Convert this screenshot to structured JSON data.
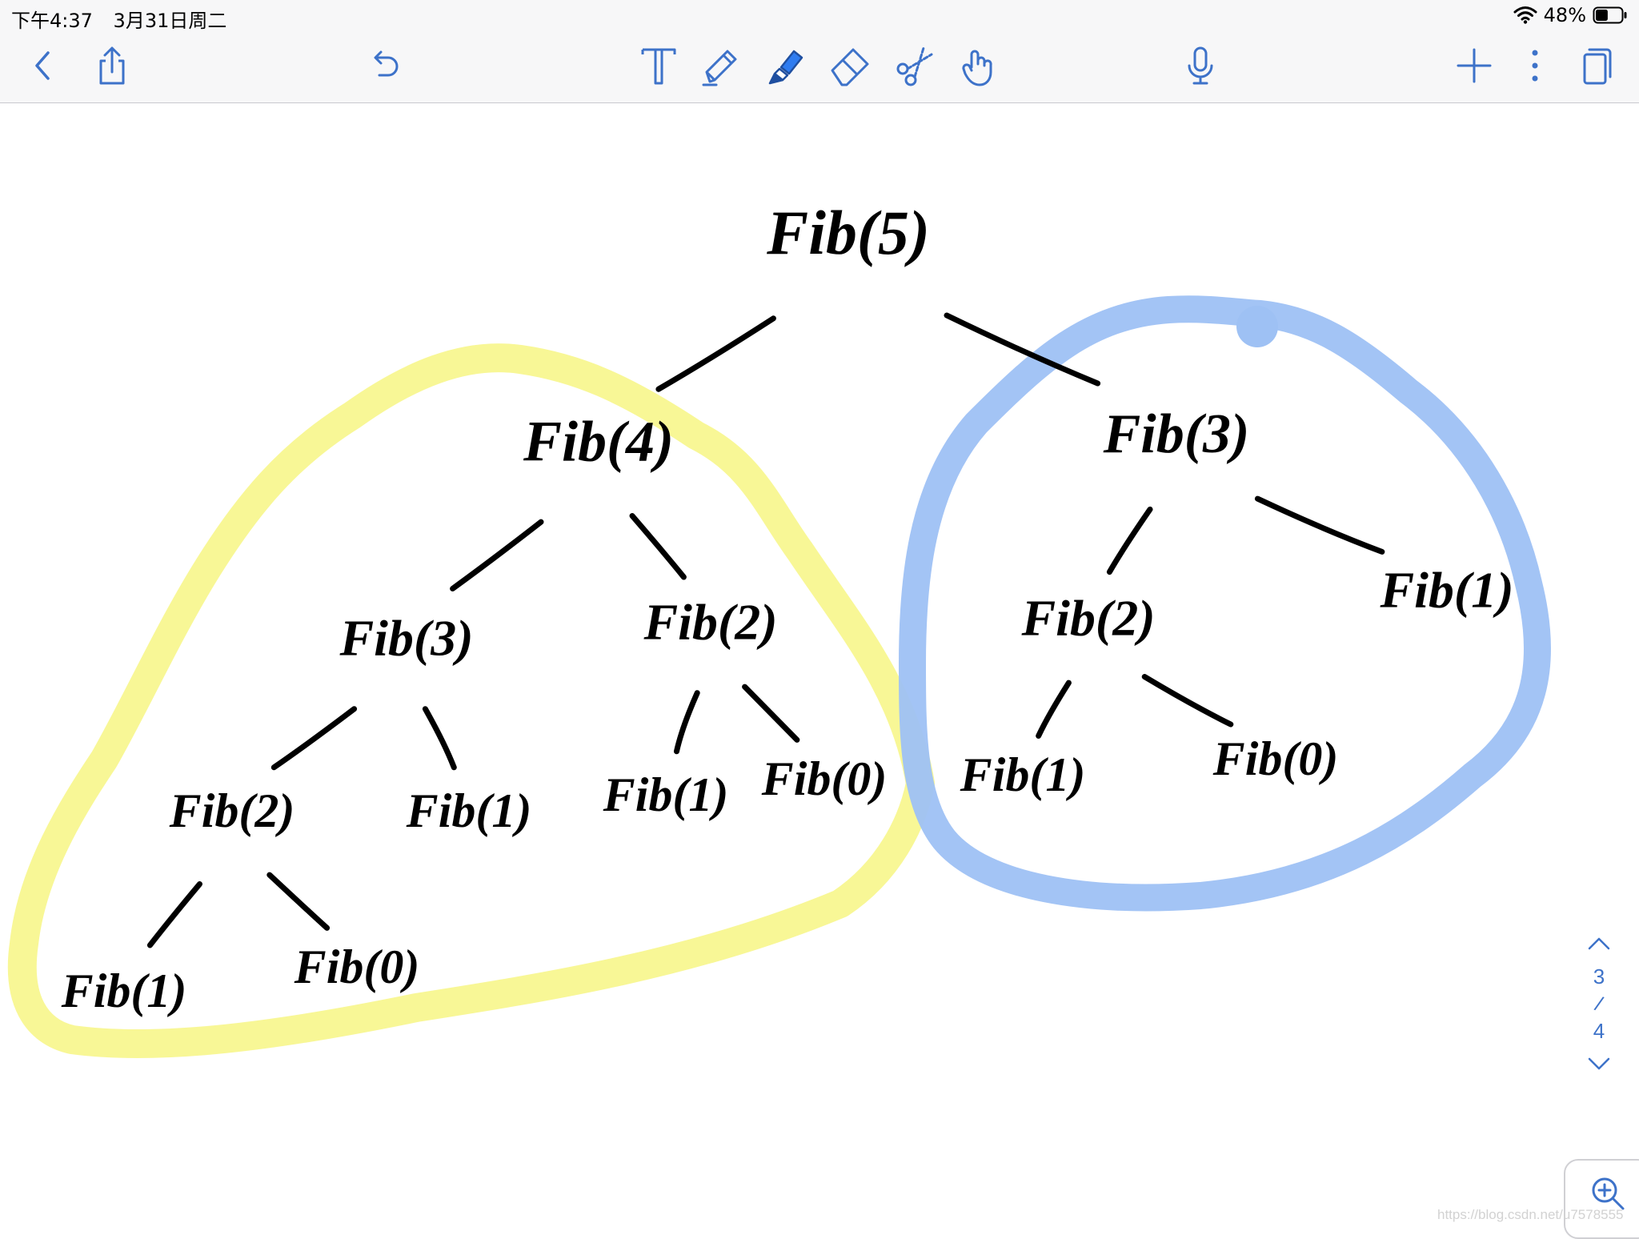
{
  "status_bar": {
    "time": "下午4:37",
    "date": "3月31日周二",
    "battery": "48%",
    "battery_level": 0.48
  },
  "toolbar": {
    "icons": [
      "back-chevron-icon",
      "share-icon",
      "undo-icon",
      "text-tool-icon",
      "pen-tool-icon",
      "highlighter-tool-icon",
      "eraser-tool-icon",
      "scissors-tool-icon",
      "hand-pointer-tool-icon",
      "microphone-icon",
      "plus-icon",
      "more-vertical-icon",
      "pages-icon"
    ],
    "selected_tool": "highlighter",
    "accent_color": "#3d72c9"
  },
  "canvas": {
    "nodes": [
      {
        "id": "n5",
        "label": "Fib(5)"
      },
      {
        "id": "n4",
        "label": "Fib(4)"
      },
      {
        "id": "n3r",
        "label": "Fib(3)"
      },
      {
        "id": "n3l",
        "label": "Fib(3)"
      },
      {
        "id": "n2m",
        "label": "Fib(2)"
      },
      {
        "id": "n2r",
        "label": "Fib(2)"
      },
      {
        "id": "n1r",
        "label": "Fib(1)"
      },
      {
        "id": "n2l",
        "label": "Fib(2)"
      },
      {
        "id": "n1a",
        "label": "Fib(1)"
      },
      {
        "id": "n1b",
        "label": "Fib(1)"
      },
      {
        "id": "n0a",
        "label": "Fib(0)"
      },
      {
        "id": "n1c",
        "label": "Fib(1)"
      },
      {
        "id": "n0b",
        "label": "Fib(0)"
      },
      {
        "id": "n1d",
        "label": "Fib(1)"
      },
      {
        "id": "n0c",
        "label": "Fib(0)"
      }
    ],
    "edges": [
      [
        "n5",
        "n4"
      ],
      [
        "n5",
        "n3r"
      ],
      [
        "n4",
        "n3l"
      ],
      [
        "n4",
        "n2m"
      ],
      [
        "n3r",
        "n2r"
      ],
      [
        "n3r",
        "n1r"
      ],
      [
        "n3l",
        "n2l"
      ],
      [
        "n3l",
        "n1a"
      ],
      [
        "n2m",
        "n1b"
      ],
      [
        "n2m",
        "n0a"
      ],
      [
        "n2r",
        "n1c"
      ],
      [
        "n2r",
        "n0b"
      ],
      [
        "n2l",
        "n1d"
      ],
      [
        "n2l",
        "n0c"
      ]
    ],
    "highlights": [
      {
        "color": "#f8f790",
        "subtree": "n4"
      },
      {
        "color": "#9ec1f4",
        "subtree": "n3r"
      }
    ]
  },
  "page_nav": {
    "current": "3",
    "separator": "/",
    "total": "4"
  },
  "watermark": "https://blog.csdn.net/u7578555"
}
